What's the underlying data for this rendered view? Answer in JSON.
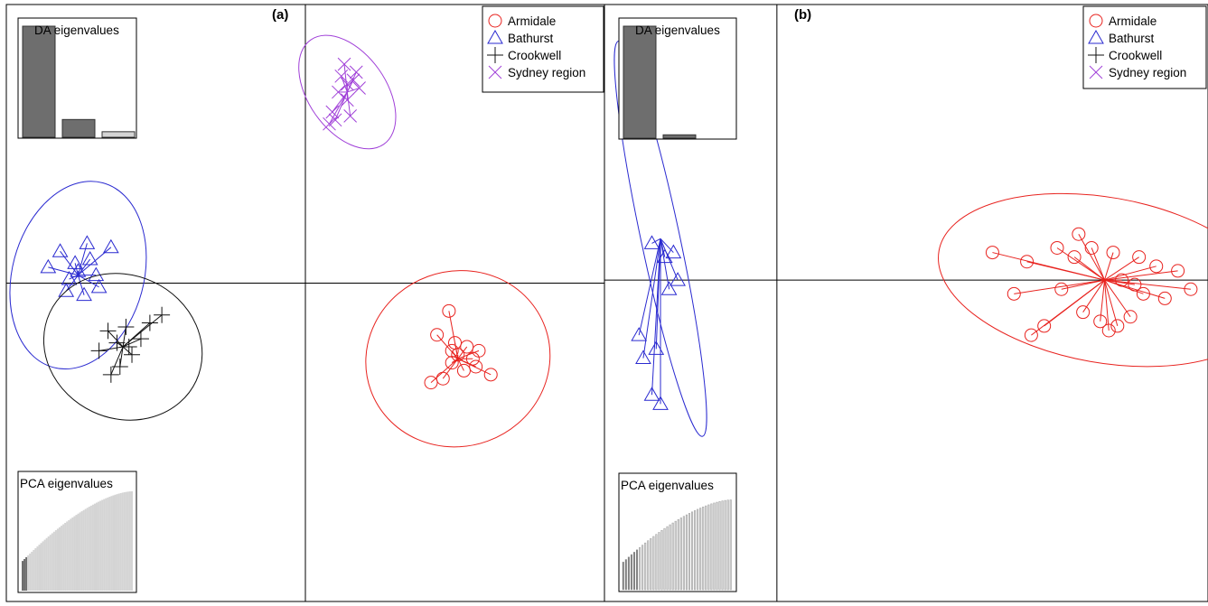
{
  "colors": {
    "armidale": "#e8231f",
    "bathurst": "#2a2ad0",
    "crookwell": "#111111",
    "sydney": "#a040d8",
    "bar_dark": "#6e6e6e",
    "bar_light": "#d4d4d4",
    "frame": "#000000"
  },
  "legend_entries": [
    {
      "key": "armidale",
      "label": "Armidale",
      "marker": "circle"
    },
    {
      "key": "bathurst",
      "label": "Bathurst",
      "marker": "triangle"
    },
    {
      "key": "crookwell",
      "label": "Crookwell",
      "marker": "plus"
    },
    {
      "key": "sydney",
      "label": "Sydney region",
      "marker": "cross"
    }
  ],
  "chart_data": [
    {
      "type": "scatter",
      "panel_label": "(a)",
      "legend_position": "top-right",
      "inset_da": {
        "title": "DA eigenvalues",
        "values": [
          1.0,
          0.16,
          0.05
        ],
        "retained": 2
      },
      "inset_pca": {
        "title": "PCA eigenvalues",
        "count": 60,
        "retained": 3
      },
      "axes": {
        "xlim": [
          -10,
          10
        ],
        "ylim": [
          -8,
          7
        ]
      },
      "groups": [
        {
          "key": "sydney",
          "centroid": [
            1.4,
            4.8
          ],
          "ellipse": {
            "rx": 1.3,
            "ry": 1.6,
            "angle": 35
          },
          "points": [
            [
              1.2,
              5.2
            ],
            [
              1.6,
              5.1
            ],
            [
              1.4,
              4.6
            ],
            [
              0.9,
              4.3
            ],
            [
              1.8,
              4.9
            ],
            [
              1.3,
              5.5
            ],
            [
              1.0,
              4.1
            ],
            [
              1.5,
              4.2
            ],
            [
              1.7,
              5.3
            ],
            [
              1.1,
              4.8
            ],
            [
              1.4,
              5.0
            ],
            [
              0.8,
              4.0
            ]
          ]
        },
        {
          "key": "bathurst",
          "centroid": [
            -7.6,
            0.2
          ],
          "ellipse": {
            "rx": 2.2,
            "ry": 2.4,
            "angle": -15
          },
          "points": [
            [
              -8.2,
              0.8
            ],
            [
              -7.2,
              0.6
            ],
            [
              -6.5,
              0.9
            ],
            [
              -7.9,
              0.1
            ],
            [
              -7.4,
              -0.3
            ],
            [
              -8.6,
              0.4
            ],
            [
              -7.0,
              0.2
            ],
            [
              -7.7,
              0.5
            ],
            [
              -8.0,
              -0.2
            ],
            [
              -7.3,
              1.0
            ],
            [
              -6.9,
              -0.1
            ],
            [
              -7.6,
              0.3
            ]
          ]
        },
        {
          "key": "crookwell",
          "centroid": [
            -6.1,
            -1.6
          ],
          "ellipse": {
            "rx": 2.7,
            "ry": 1.8,
            "angle": -25
          },
          "points": [
            [
              -6.6,
              -1.2
            ],
            [
              -5.8,
              -1.8
            ],
            [
              -6.2,
              -2.1
            ],
            [
              -5.5,
              -1.4
            ],
            [
              -6.9,
              -1.7
            ],
            [
              -6.0,
              -1.1
            ],
            [
              -5.2,
              -1.0
            ],
            [
              -6.3,
              -1.5
            ],
            [
              -6.5,
              -2.3
            ],
            [
              -5.9,
              -1.6
            ],
            [
              -4.8,
              -0.8
            ]
          ]
        },
        {
          "key": "armidale",
          "centroid": [
            5.1,
            -1.9
          ],
          "ellipse": {
            "rx": 3.1,
            "ry": 2.2,
            "angle": 20
          },
          "points": [
            [
              4.8,
              -0.7
            ],
            [
              4.4,
              -1.3
            ],
            [
              4.9,
              -1.7
            ],
            [
              5.4,
              -1.6
            ],
            [
              5.7,
              -2.1
            ],
            [
              6.2,
              -2.3
            ],
            [
              4.2,
              -2.5
            ],
            [
              4.6,
              -2.4
            ],
            [
              5.3,
              -2.2
            ],
            [
              5.1,
              -1.8
            ],
            [
              5.6,
              -1.9
            ],
            [
              4.9,
              -2.0
            ],
            [
              5.0,
              -1.5
            ],
            [
              5.8,
              -1.7
            ]
          ]
        }
      ]
    },
    {
      "type": "scatter",
      "panel_label": "(b)",
      "legend_position": "top-right",
      "inset_da": {
        "title": "DA eigenvalues",
        "values": [
          1.0,
          0.03
        ],
        "retained": 2
      },
      "inset_pca": {
        "title": "PCA eigenvalues",
        "count": 40,
        "retained": 6
      },
      "axes": {
        "xlim": [
          -4,
          10
        ],
        "ylim": [
          -7,
          6
        ]
      },
      "groups": [
        {
          "key": "bathurst",
          "centroid": [
            -2.7,
            0.9
          ],
          "ellipse": {
            "rx": 0.45,
            "ry": 4.4,
            "angle": 12
          },
          "points": [
            [
              -2.9,
              0.8
            ],
            [
              -2.6,
              0.5
            ],
            [
              -2.5,
              -0.2
            ],
            [
              -3.2,
              -1.2
            ],
            [
              -2.8,
              -1.5
            ],
            [
              -3.1,
              -1.7
            ],
            [
              -2.7,
              -2.7
            ],
            [
              -2.9,
              -2.5
            ],
            [
              -2.3,
              0.0
            ],
            [
              -2.4,
              0.6
            ]
          ]
        },
        {
          "key": "armidale",
          "centroid": [
            7.6,
            0.0
          ],
          "ellipse": {
            "rx": 3.9,
            "ry": 1.8,
            "angle": -10
          },
          "points": [
            [
              5.0,
              0.6
            ],
            [
              5.8,
              0.4
            ],
            [
              6.5,
              0.7
            ],
            [
              7.0,
              1.0
            ],
            [
              6.9,
              0.5
            ],
            [
              7.3,
              0.7
            ],
            [
              7.8,
              0.6
            ],
            [
              8.4,
              0.5
            ],
            [
              8.8,
              0.3
            ],
            [
              9.3,
              0.2
            ],
            [
              9.6,
              -0.2
            ],
            [
              9.0,
              -0.4
            ],
            [
              8.5,
              -0.3
            ],
            [
              8.2,
              -0.8
            ],
            [
              7.9,
              -1.0
            ],
            [
              7.5,
              -0.9
            ],
            [
              7.1,
              -0.7
            ],
            [
              6.6,
              -0.2
            ],
            [
              6.2,
              -1.0
            ],
            [
              5.5,
              -0.3
            ],
            [
              5.9,
              -1.2
            ],
            [
              7.7,
              -1.1
            ],
            [
              8.0,
              0.0
            ],
            [
              8.3,
              -0.1
            ]
          ]
        }
      ]
    }
  ]
}
